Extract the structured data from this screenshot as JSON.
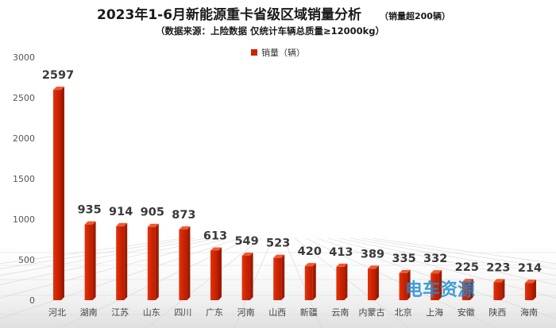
{
  "chart_data": {
    "type": "bar",
    "title": "2023年1-6月新能源重卡省级区域销量分析",
    "title_note": "（销量超200辆）",
    "subtitle": "（数据来源：上险数据  仅统计车辆总质量≥12000kg）",
    "legend": {
      "position": "top-center",
      "entries": [
        "销量（辆）"
      ]
    },
    "categories": [
      "河北",
      "湖南",
      "江苏",
      "山东",
      "四川",
      "广东",
      "河南",
      "山西",
      "新疆",
      "云南",
      "内蒙古",
      "北京",
      "上海",
      "安徽",
      "陕西",
      "海南"
    ],
    "series": [
      {
        "name": "销量（辆）",
        "color": "#cc2200",
        "values": [
          2597,
          935,
          914,
          905,
          873,
          613,
          549,
          523,
          420,
          413,
          389,
          335,
          332,
          225,
          223,
          214
        ]
      }
    ],
    "yaxis": {
      "min": 0,
      "max": 3000,
      "ticks": [
        0,
        500,
        1000,
        1500,
        2000,
        2500,
        3000
      ]
    },
    "grid": false
  },
  "watermark": {
    "text": "电车资源",
    "color": "#1e8fd6"
  }
}
